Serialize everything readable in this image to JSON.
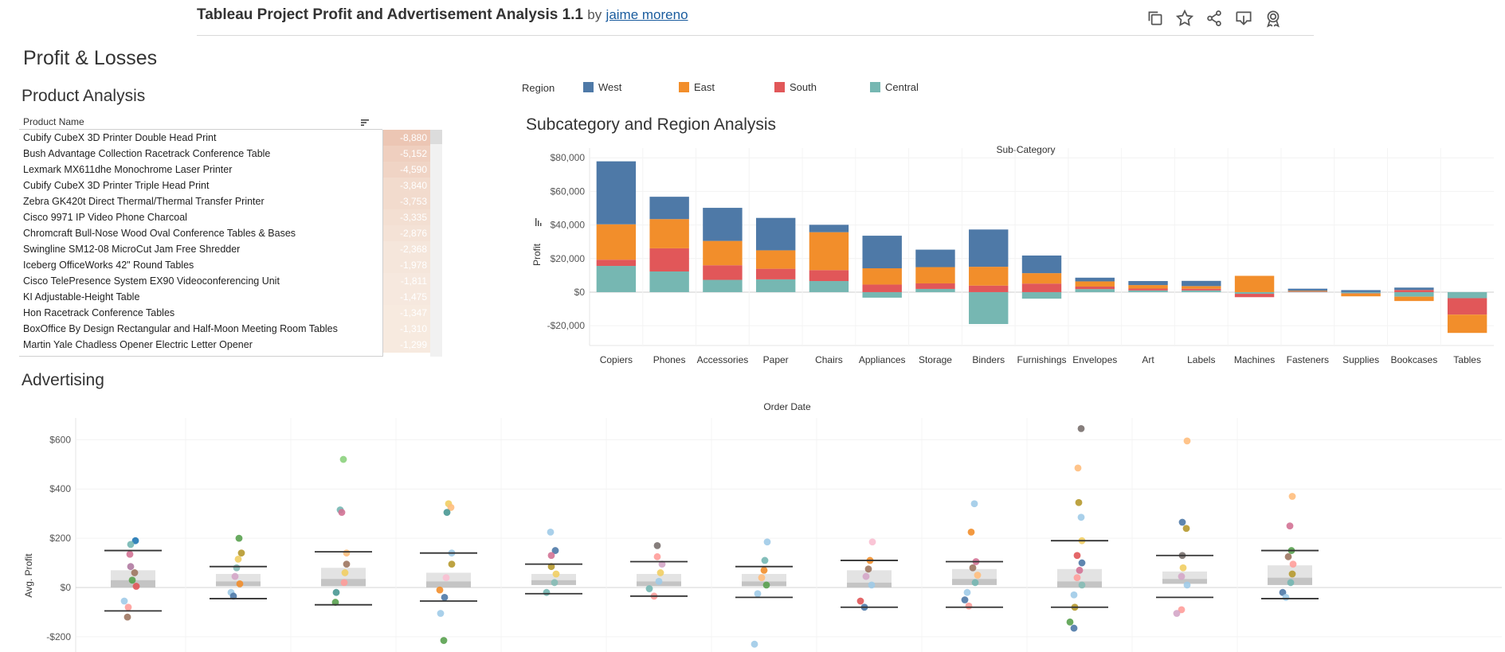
{
  "header": {
    "title": "Tableau Project Profit and Advertisement Analysis 1.1",
    "by": "by",
    "author": "jaime moreno",
    "icons": [
      "copy-icon",
      "star-icon",
      "share-icon",
      "download-icon",
      "metrics-icon"
    ]
  },
  "sections": {
    "page_title": "Profit & Losses",
    "product": "Product Analysis",
    "subcat": "Subcategory and Region Analysis",
    "advertising": "Advertising"
  },
  "product_table": {
    "column": "Product Name",
    "rows": [
      {
        "name": "Cubify CubeX 3D Printer Double Head Print",
        "value": "-8,880"
      },
      {
        "name": "Bush Advantage Collection Racetrack Conference Table",
        "value": "-5,152"
      },
      {
        "name": "Lexmark MX611dhe Monochrome Laser Printer",
        "value": "-4,590"
      },
      {
        "name": "Cubify CubeX 3D Printer Triple Head Print",
        "value": "-3,840"
      },
      {
        "name": "Zebra GK420t Direct Thermal/Thermal Transfer Printer",
        "value": "-3,753"
      },
      {
        "name": "Cisco 9971 IP Video Phone Charcoal",
        "value": "-3,335"
      },
      {
        "name": "Chromcraft Bull-Nose Wood Oval Conference Tables & Bases",
        "value": "-2,876"
      },
      {
        "name": "Swingline SM12-08 MicroCut Jam Free Shredder",
        "value": "-2,368"
      },
      {
        "name": "Iceberg OfficeWorks 42\" Round Tables",
        "value": "-1,978"
      },
      {
        "name": "Cisco TelePresence System EX90 Videoconferencing Unit",
        "value": "-1,811"
      },
      {
        "name": "KI Adjustable-Height Table",
        "value": "-1,475"
      },
      {
        "name": "Hon Racetrack Conference Tables",
        "value": "-1,347"
      },
      {
        "name": "BoxOffice By Design Rectangular and Half-Moon Meeting Room Tables",
        "value": "-1,310"
      },
      {
        "name": "Martin Yale Chadless Opener Electric Letter Opener",
        "value": "-1,299"
      }
    ],
    "heat_colors": [
      "#ecc6b4",
      "#efcfbf",
      "#f0d4c5",
      "#f2dbcd",
      "#f2dbcd",
      "#f3dfd2",
      "#f4e2d6",
      "#f5e6db",
      "#f5e6db",
      "#f6e8de",
      "#f6e8de",
      "#f7eadf",
      "#f7eadf",
      "#f7eadf"
    ]
  },
  "legend": {
    "title": "Region",
    "items": [
      {
        "label": "West",
        "color": "#4e79a7"
      },
      {
        "label": "East",
        "color": "#f28e2b"
      },
      {
        "label": "South",
        "color": "#e15759"
      },
      {
        "label": "Central",
        "color": "#76b7b2"
      }
    ]
  },
  "chart_data": [
    {
      "type": "bar",
      "stacked": true,
      "title": "Sub-Category",
      "xlabel": "",
      "ylabel": "Profit",
      "ylim": [
        -28000,
        82000
      ],
      "yticks": [
        -20000,
        0,
        20000,
        40000,
        60000,
        80000
      ],
      "ytick_labels": [
        "-$20,000",
        "$0",
        "$20,000",
        "$40,000",
        "$60,000",
        "$80,000"
      ],
      "categories": [
        "Copiers",
        "Phones",
        "Accessories",
        "Paper",
        "Chairs",
        "Appliances",
        "Storage",
        "Binders",
        "Furnishings",
        "Envelopes",
        "Art",
        "Labels",
        "Machines",
        "Fasteners",
        "Supplies",
        "Bookcases",
        "Tables"
      ],
      "series": [
        {
          "name": "Central",
          "color": "#76b7b2",
          "values": [
            15600,
            12300,
            7300,
            7600,
            6600,
            -3300,
            1900,
            -19000,
            -3900,
            1800,
            1000,
            1000,
            -1000,
            240,
            -700,
            -2700,
            -3600
          ]
        },
        {
          "name": "South",
          "color": "#e15759",
          "values": [
            3700,
            13800,
            8700,
            6300,
            6500,
            4500,
            3300,
            3900,
            5100,
            1500,
            1100,
            1000,
            -2000,
            210,
            -200,
            1300,
            -9800
          ]
        },
        {
          "name": "East",
          "color": "#f28e2b",
          "values": [
            21100,
            17400,
            14500,
            11000,
            22600,
            9700,
            9700,
            11200,
            6200,
            3100,
            2100,
            1600,
            9700,
            400,
            -1600,
            -2600,
            -10900
          ]
        },
        {
          "name": "West",
          "color": "#4e79a7",
          "values": [
            37500,
            13300,
            19700,
            19300,
            4400,
            19400,
            10400,
            22200,
            10500,
            2200,
            2400,
            3100,
            0,
            1200,
            1200,
            1400,
            0
          ]
        }
      ]
    },
    {
      "type": "scatter",
      "title": "Order Date",
      "xlabel": "",
      "ylabel": "Avg. Profit",
      "ylim": [
        -230,
        700
      ],
      "yticks": [
        -200,
        0,
        200,
        400,
        600
      ],
      "ytick_labels": [
        "-$200",
        "$0",
        "$200",
        "$400",
        "$600"
      ],
      "groups": 12,
      "boxplots": [
        {
          "whisker_low": -95,
          "q1": 0,
          "median": 30,
          "q3": 70,
          "whisker_high": 150
        },
        {
          "whisker_low": -45,
          "q1": 5,
          "median": 25,
          "q3": 55,
          "whisker_high": 85
        },
        {
          "whisker_low": -70,
          "q1": 5,
          "median": 35,
          "q3": 80,
          "whisker_high": 145
        },
        {
          "whisker_low": -55,
          "q1": 0,
          "median": 25,
          "q3": 60,
          "whisker_high": 140
        },
        {
          "whisker_low": -25,
          "q1": 10,
          "median": 30,
          "q3": 55,
          "whisker_high": 95
        },
        {
          "whisker_low": -35,
          "q1": 5,
          "median": 25,
          "q3": 55,
          "whisker_high": 105
        },
        {
          "whisker_low": -40,
          "q1": 5,
          "median": 25,
          "q3": 55,
          "whisker_high": 85
        },
        {
          "whisker_low": -80,
          "q1": 0,
          "median": 20,
          "q3": 70,
          "whisker_high": 110
        },
        {
          "whisker_low": -80,
          "q1": 10,
          "median": 35,
          "q3": 75,
          "whisker_high": 105
        },
        {
          "whisker_low": -80,
          "q1": 0,
          "median": 25,
          "q3": 75,
          "whisker_high": 190
        },
        {
          "whisker_low": -40,
          "q1": 15,
          "median": 35,
          "q3": 65,
          "whisker_high": 130
        },
        {
          "whisker_low": -45,
          "q1": 10,
          "median": 40,
          "q3": 90,
          "whisker_high": 150
        }
      ],
      "points": [
        {
          "g": 0,
          "y": 190,
          "c": "#1f77b4"
        },
        {
          "g": 0,
          "y": 175,
          "c": "#76b7b2"
        },
        {
          "g": 0,
          "y": 135,
          "c": "#d37295"
        },
        {
          "g": 0,
          "y": 85,
          "c": "#b07aa1"
        },
        {
          "g": 0,
          "y": 60,
          "c": "#9d7660"
        },
        {
          "g": 0,
          "y": 30,
          "c": "#59a14f"
        },
        {
          "g": 0,
          "y": 5,
          "c": "#e15759"
        },
        {
          "g": 0,
          "y": -55,
          "c": "#a0cbe8"
        },
        {
          "g": 0,
          "y": -80,
          "c": "#ff9d9a"
        },
        {
          "g": 0,
          "y": -120,
          "c": "#9d7660"
        },
        {
          "g": 1,
          "y": 200,
          "c": "#59a14f"
        },
        {
          "g": 1,
          "y": 140,
          "c": "#b6992d"
        },
        {
          "g": 1,
          "y": 115,
          "c": "#f1ce63"
        },
        {
          "g": 1,
          "y": 80,
          "c": "#86bcb6"
        },
        {
          "g": 1,
          "y": 45,
          "c": "#d4a6c8"
        },
        {
          "g": 1,
          "y": 15,
          "c": "#f28e2b"
        },
        {
          "g": 1,
          "y": -20,
          "c": "#a0cbe8"
        },
        {
          "g": 1,
          "y": -35,
          "c": "#4e79a7"
        },
        {
          "g": 2,
          "y": 520,
          "c": "#8cd17d"
        },
        {
          "g": 2,
          "y": 315,
          "c": "#76b7b2"
        },
        {
          "g": 2,
          "y": 305,
          "c": "#d37295"
        },
        {
          "g": 2,
          "y": 140,
          "c": "#ffbe7d"
        },
        {
          "g": 2,
          "y": 95,
          "c": "#9d7660"
        },
        {
          "g": 2,
          "y": 60,
          "c": "#f1ce63"
        },
        {
          "g": 2,
          "y": 20,
          "c": "#ff9d9a"
        },
        {
          "g": 2,
          "y": -20,
          "c": "#499894"
        },
        {
          "g": 2,
          "y": -60,
          "c": "#59a14f"
        },
        {
          "g": 3,
          "y": 340,
          "c": "#f1ce63"
        },
        {
          "g": 3,
          "y": 325,
          "c": "#ffbe7d"
        },
        {
          "g": 3,
          "y": 305,
          "c": "#499894"
        },
        {
          "g": 3,
          "y": 140,
          "c": "#a0cbe8"
        },
        {
          "g": 3,
          "y": 95,
          "c": "#b6992d"
        },
        {
          "g": 3,
          "y": 40,
          "c": "#fabfd2"
        },
        {
          "g": 3,
          "y": -10,
          "c": "#f28e2b"
        },
        {
          "g": 3,
          "y": -40,
          "c": "#4e79a7"
        },
        {
          "g": 3,
          "y": -105,
          "c": "#a0cbe8"
        },
        {
          "g": 3,
          "y": -215,
          "c": "#59a14f"
        },
        {
          "g": 4,
          "y": 225,
          "c": "#a0cbe8"
        },
        {
          "g": 4,
          "y": 150,
          "c": "#4e79a7"
        },
        {
          "g": 4,
          "y": 130,
          "c": "#d37295"
        },
        {
          "g": 4,
          "y": 85,
          "c": "#b6992d"
        },
        {
          "g": 4,
          "y": 55,
          "c": "#f1ce63"
        },
        {
          "g": 4,
          "y": 20,
          "c": "#86bcb6"
        },
        {
          "g": 4,
          "y": -20,
          "c": "#76b7b2"
        },
        {
          "g": 5,
          "y": 170,
          "c": "#79706e"
        },
        {
          "g": 5,
          "y": 125,
          "c": "#ff9d9a"
        },
        {
          "g": 5,
          "y": 95,
          "c": "#d4a6c8"
        },
        {
          "g": 5,
          "y": 60,
          "c": "#f1ce63"
        },
        {
          "g": 5,
          "y": 25,
          "c": "#a0cbe8"
        },
        {
          "g": 5,
          "y": -5,
          "c": "#76b7b2"
        },
        {
          "g": 5,
          "y": -35,
          "c": "#ff9d9a"
        },
        {
          "g": 6,
          "y": 185,
          "c": "#a0cbe8"
        },
        {
          "g": 6,
          "y": 110,
          "c": "#76b7b2"
        },
        {
          "g": 6,
          "y": 70,
          "c": "#f28e2b"
        },
        {
          "g": 6,
          "y": 40,
          "c": "#ffbe7d"
        },
        {
          "g": 6,
          "y": 10,
          "c": "#59a14f"
        },
        {
          "g": 6,
          "y": -25,
          "c": "#a0cbe8"
        },
        {
          "g": 6,
          "y": -230,
          "c": "#a0cbe8"
        },
        {
          "g": 7,
          "y": 185,
          "c": "#fabfd2"
        },
        {
          "g": 7,
          "y": 110,
          "c": "#f28e2b"
        },
        {
          "g": 7,
          "y": 75,
          "c": "#9d7660"
        },
        {
          "g": 7,
          "y": 45,
          "c": "#d4a6c8"
        },
        {
          "g": 7,
          "y": 10,
          "c": "#a0cbe8"
        },
        {
          "g": 7,
          "y": -55,
          "c": "#e15759"
        },
        {
          "g": 7,
          "y": -80,
          "c": "#4e79a7"
        },
        {
          "g": 8,
          "y": 340,
          "c": "#a0cbe8"
        },
        {
          "g": 8,
          "y": 225,
          "c": "#f28e2b"
        },
        {
          "g": 8,
          "y": 105,
          "c": "#d37295"
        },
        {
          "g": 8,
          "y": 80,
          "c": "#9d7660"
        },
        {
          "g": 8,
          "y": 50,
          "c": "#ffbe7d"
        },
        {
          "g": 8,
          "y": 20,
          "c": "#76b7b2"
        },
        {
          "g": 8,
          "y": -20,
          "c": "#a0cbe8"
        },
        {
          "g": 8,
          "y": -50,
          "c": "#4e79a7"
        },
        {
          "g": 8,
          "y": -75,
          "c": "#ff9d9a"
        },
        {
          "g": 9,
          "y": 645,
          "c": "#79706e"
        },
        {
          "g": 9,
          "y": 485,
          "c": "#ffbe7d"
        },
        {
          "g": 9,
          "y": 345,
          "c": "#b6992d"
        },
        {
          "g": 9,
          "y": 285,
          "c": "#a0cbe8"
        },
        {
          "g": 9,
          "y": 190,
          "c": "#f1ce63"
        },
        {
          "g": 9,
          "y": 130,
          "c": "#e15759"
        },
        {
          "g": 9,
          "y": 100,
          "c": "#4e79a7"
        },
        {
          "g": 9,
          "y": 70,
          "c": "#d37295"
        },
        {
          "g": 9,
          "y": 40,
          "c": "#ff9d9a"
        },
        {
          "g": 9,
          "y": 10,
          "c": "#86bcb6"
        },
        {
          "g": 9,
          "y": -30,
          "c": "#a0cbe8"
        },
        {
          "g": 9,
          "y": -80,
          "c": "#b6992d"
        },
        {
          "g": 9,
          "y": -140,
          "c": "#59a14f"
        },
        {
          "g": 9,
          "y": -165,
          "c": "#4e79a7"
        },
        {
          "g": 10,
          "y": 595,
          "c": "#ffbe7d"
        },
        {
          "g": 10,
          "y": 265,
          "c": "#4e79a7"
        },
        {
          "g": 10,
          "y": 240,
          "c": "#b6992d"
        },
        {
          "g": 10,
          "y": 130,
          "c": "#79706e"
        },
        {
          "g": 10,
          "y": 80,
          "c": "#f1ce63"
        },
        {
          "g": 10,
          "y": 45,
          "c": "#d4a6c8"
        },
        {
          "g": 10,
          "y": 10,
          "c": "#a0cbe8"
        },
        {
          "g": 10,
          "y": -90,
          "c": "#ff9d9a"
        },
        {
          "g": 10,
          "y": -105,
          "c": "#d4a6c8"
        },
        {
          "g": 11,
          "y": 370,
          "c": "#ffbe7d"
        },
        {
          "g": 11,
          "y": 250,
          "c": "#d37295"
        },
        {
          "g": 11,
          "y": 150,
          "c": "#59a14f"
        },
        {
          "g": 11,
          "y": 125,
          "c": "#9d7660"
        },
        {
          "g": 11,
          "y": 95,
          "c": "#ff9d9a"
        },
        {
          "g": 11,
          "y": 55,
          "c": "#b6992d"
        },
        {
          "g": 11,
          "y": 20,
          "c": "#76b7b2"
        },
        {
          "g": 11,
          "y": -20,
          "c": "#4e79a7"
        },
        {
          "g": 11,
          "y": -40,
          "c": "#a0cbe8"
        }
      ]
    }
  ]
}
